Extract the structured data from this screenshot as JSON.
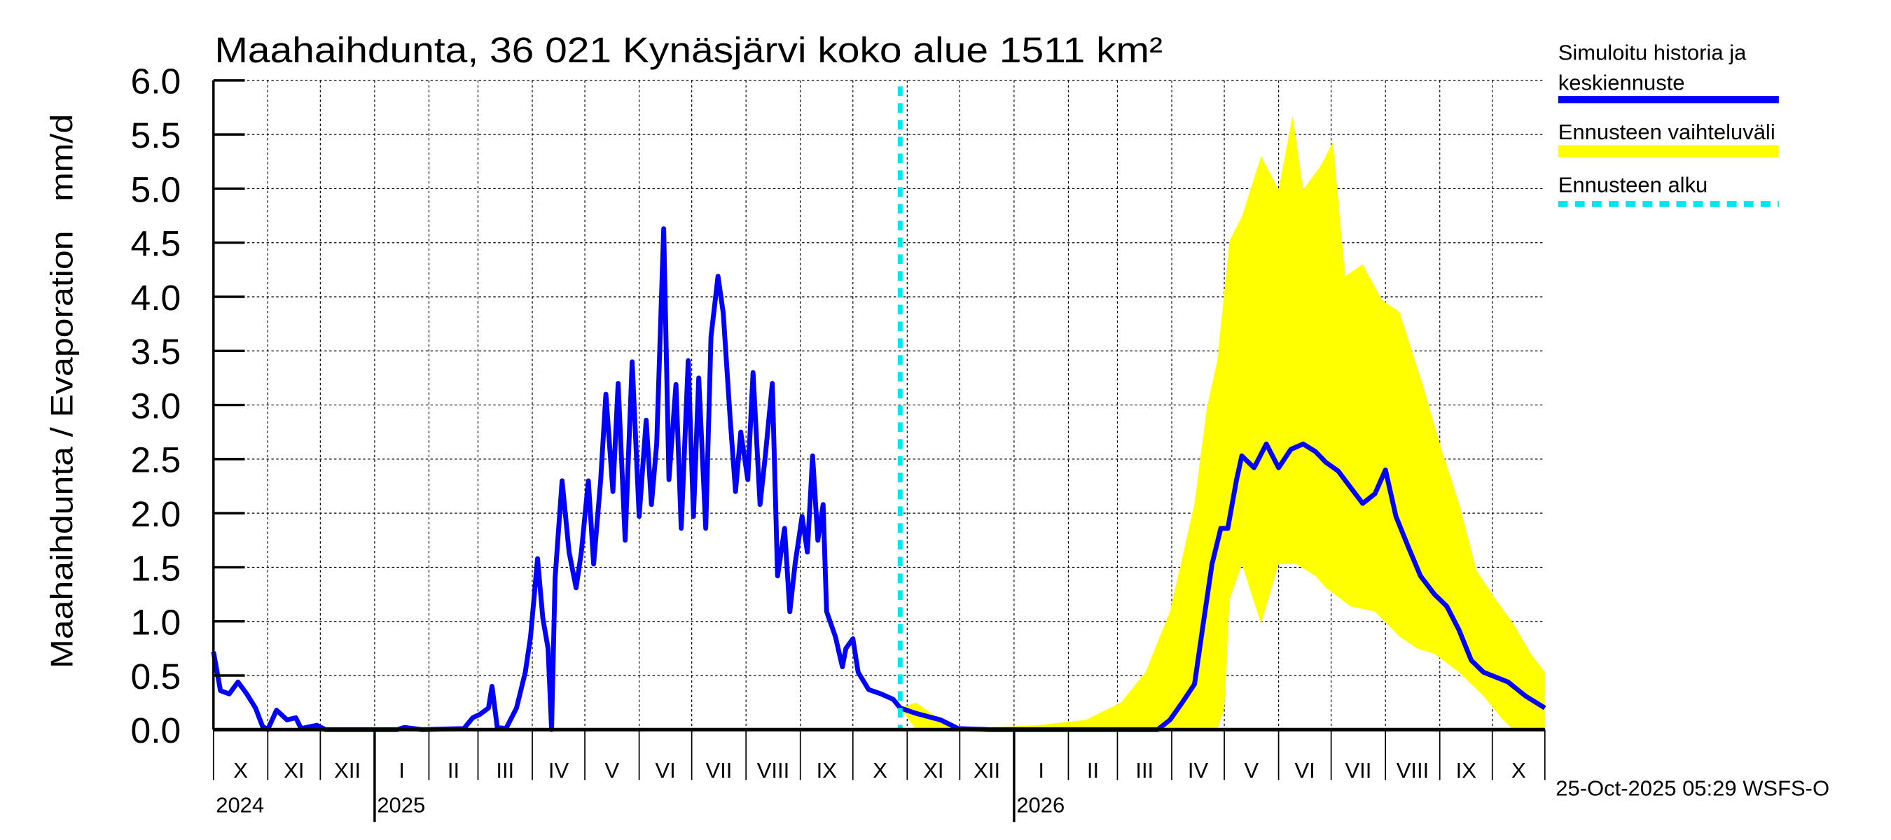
{
  "chart_data": {
    "type": "line",
    "title": "Maahaihdunta, 36 021 Kynäsjärvi koko alue 1511 km²",
    "ylabel": "Maahaihdunta / Evaporation   mm/d",
    "xlabel": "",
    "x_unit": "days since 2024-10-01",
    "x_start_date": "2024-10-01",
    "xlim": [
      0,
      760
    ],
    "ylim": [
      0,
      6
    ],
    "grid": true,
    "y_ticks": [
      "0.0",
      "0.5",
      "1.0",
      "1.5",
      "2.0",
      "2.5",
      "3.0",
      "3.5",
      "4.0",
      "4.5",
      "5.0",
      "5.5",
      "6.0"
    ],
    "month_labels": [
      "X",
      "XI",
      "XII",
      "I",
      "II",
      "III",
      "IV",
      "V",
      "VI",
      "VII",
      "VIII",
      "IX",
      "X",
      "XI",
      "XII",
      "I",
      "II",
      "III",
      "IV",
      "V",
      "VI",
      "VII",
      "VIII",
      "IX",
      "X"
    ],
    "year_labels": [
      {
        "label": "2024",
        "month_index": 0
      },
      {
        "label": "2025",
        "month_index": 3
      },
      {
        "label": "2026",
        "month_index": 15
      }
    ],
    "forecast_start_day": 392,
    "legend": {
      "placement": "right",
      "items": [
        {
          "label_line1": "Simuloitu historia ja",
          "label_line2": "keskiennuste",
          "color": "#0000ff",
          "style": "solid"
        },
        {
          "label_line1": "Ennusteen vaihteluväli",
          "label_line2": "",
          "color": "#ffff00",
          "style": "band"
        },
        {
          "label_line1": "Ennusteen alku",
          "label_line2": "",
          "color": "#00e5ee",
          "style": "dashed"
        }
      ]
    },
    "series": [
      {
        "name": "Simuloitu historia",
        "color": "#0000ff",
        "x": [
          0,
          4,
          9,
          14,
          19,
          24,
          28,
          31,
          36,
          42,
          47,
          50,
          59,
          64,
          105,
          109,
          119,
          143,
          148,
          152,
          157,
          159,
          162,
          167,
          173,
          178,
          181,
          185,
          188,
          191,
          193,
          195,
          199,
          203,
          207,
          210,
          214,
          217,
          221,
          224,
          228,
          231,
          235,
          239,
          243,
          247,
          250,
          253,
          257,
          260,
          264,
          267,
          271,
          274,
          277,
          281,
          284,
          288,
          291,
          295,
          298,
          301,
          305,
          308,
          312,
          315,
          319,
          322,
          326,
          329,
          332,
          336,
          339,
          342,
          345,
          348,
          350,
          355,
          359,
          361,
          365,
          368,
          374,
          381,
          388,
          392
        ],
        "y": [
          0.72,
          0.36,
          0.33,
          0.44,
          0.33,
          0.2,
          0.03,
          0,
          0.18,
          0.09,
          0.11,
          0.01,
          0.04,
          0,
          0,
          0.02,
          0,
          0.01,
          0.11,
          0.14,
          0.2,
          0.4,
          0.02,
          0.01,
          0.2,
          0.53,
          0.86,
          1.58,
          1.03,
          0.75,
          0,
          1.4,
          2.3,
          1.64,
          1.31,
          1.64,
          2.3,
          1.53,
          2.3,
          3.1,
          2.2,
          3.2,
          1.75,
          3.4,
          1.97,
          2.86,
          2.08,
          2.64,
          4.63,
          2.31,
          3.19,
          1.86,
          3.41,
          1.97,
          3.25,
          1.86,
          3.63,
          4.19,
          3.85,
          2.86,
          2.2,
          2.75,
          2.31,
          3.3,
          2.08,
          2.53,
          3.2,
          1.42,
          1.86,
          1.09,
          1.53,
          1.97,
          1.64,
          2.53,
          1.75,
          2.08,
          1.09,
          0.86,
          0.58,
          0.75,
          0.84,
          0.53,
          0.37,
          0.33,
          0.28,
          0.2
        ]
      },
      {
        "name": "Keskiennuste",
        "color": "#0000ff",
        "x": [
          392,
          401,
          415,
          425,
          443,
          539,
          546,
          553,
          560,
          565,
          570,
          575,
          579,
          584,
          587,
          594,
          601,
          608,
          615,
          622,
          629,
          635,
          642,
          649,
          656,
          663,
          669,
          675,
          682,
          689,
          697,
          704,
          711,
          718,
          725,
          739,
          749,
          760
        ],
        "y": [
          0.2,
          0.15,
          0.09,
          0.01,
          0,
          0,
          0.09,
          0.25,
          0.42,
          0.98,
          1.53,
          1.86,
          1.86,
          2.31,
          2.53,
          2.42,
          2.64,
          2.42,
          2.59,
          2.64,
          2.57,
          2.47,
          2.39,
          2.24,
          2.09,
          2.18,
          2.4,
          1.97,
          1.69,
          1.42,
          1.25,
          1.14,
          0.92,
          0.64,
          0.53,
          0.44,
          0.31,
          0.2
        ]
      },
      {
        "name": "Ennusteen vaihteluväli (max)",
        "color": "#ffff00",
        "x": [
          392,
          401,
          415,
          429,
          470,
          498,
          518,
          532,
          546,
          560,
          567,
          573,
          580,
          587,
          598,
          608,
          616,
          622,
          632,
          639,
          646,
          656,
          667,
          677,
          690,
          701,
          711,
          721,
          732,
          742,
          752,
          760
        ],
        "y": [
          0.2,
          0.25,
          0.09,
          0.01,
          0.04,
          0.09,
          0.25,
          0.53,
          1.09,
          2.09,
          2.97,
          3.41,
          4.52,
          4.74,
          5.3,
          4.99,
          5.68,
          4.99,
          5.21,
          5.43,
          4.19,
          4.3,
          3.97,
          3.86,
          3.2,
          2.59,
          2.09,
          1.47,
          1.2,
          0.98,
          0.7,
          0.53
        ]
      },
      {
        "name": "Ennusteen vaihteluväli (min)",
        "color": "#ffff00",
        "x": [
          392,
          401,
          573,
          577,
          580,
          587,
          598,
          608,
          618,
          629,
          635,
          649,
          663,
          677,
          687,
          697,
          711,
          725,
          736,
          742,
          760
        ],
        "y": [
          0.2,
          0,
          0,
          0.2,
          1.2,
          1.53,
          0.98,
          1.53,
          1.53,
          1.42,
          1.31,
          1.14,
          1.09,
          0.86,
          0.75,
          0.7,
          0.53,
          0.31,
          0.09,
          0,
          0
        ]
      }
    ]
  },
  "footer": {
    "timestamp": "25-Oct-2025 05:29 WSFS-O"
  }
}
